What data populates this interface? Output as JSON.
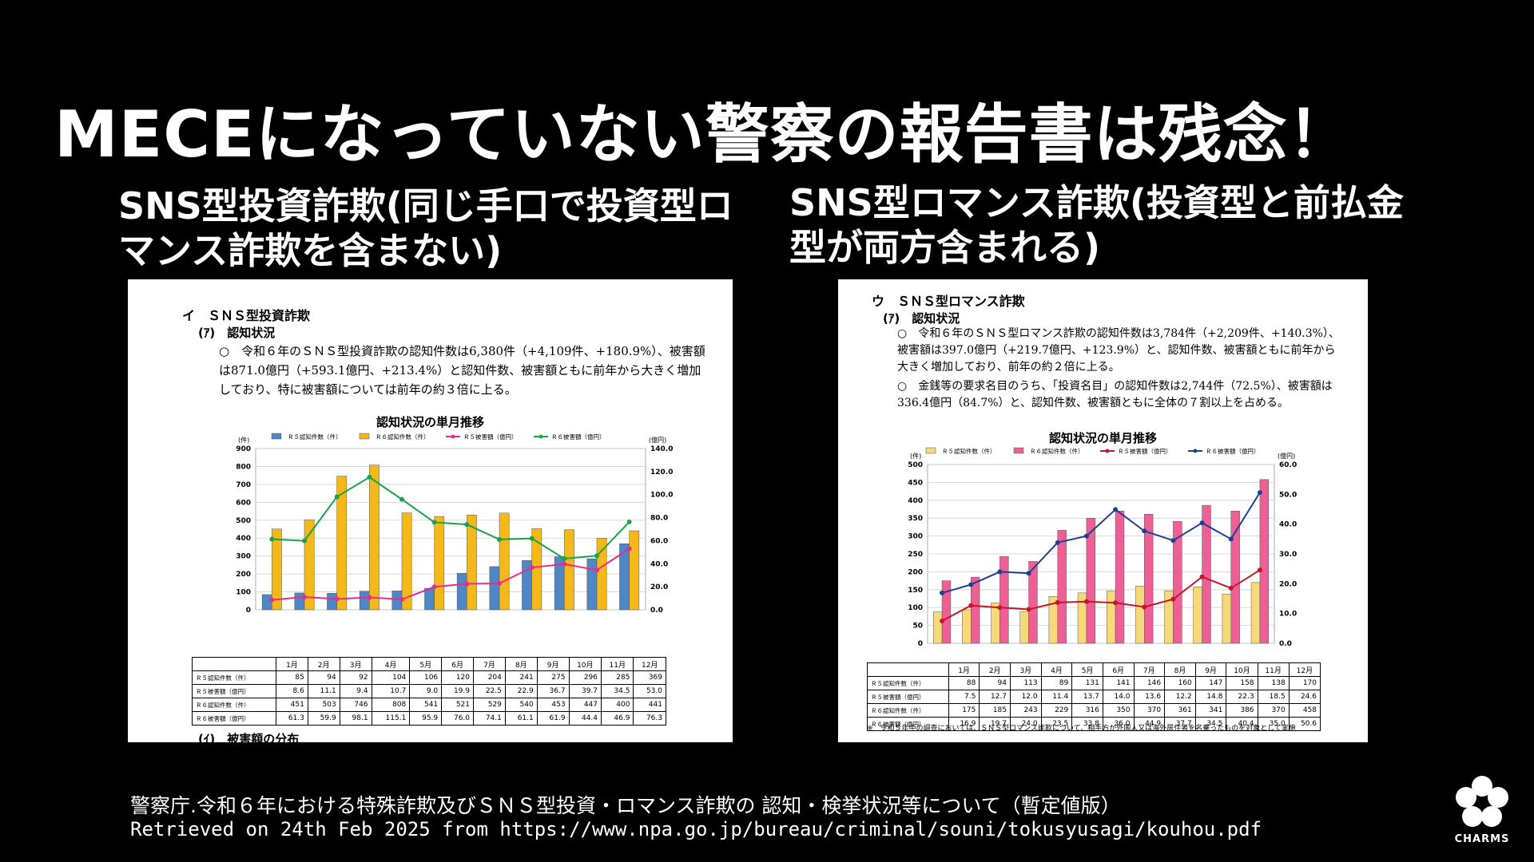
{
  "slide": {
    "title": "MECEになっていない警察の報告書は残念！",
    "left_heading": "SNS型投資詐欺(同じ手口で投資型ロマンス詐欺を含まない)",
    "right_heading": "SNS型ロマンス詐欺(投資型と前払金型が両方含まれる)",
    "source_line1": "警察庁.令和６年における特殊詐欺及びＳＮＳ型投資・ロマンス詐欺の 認知・検挙状況等について（暫定値版）",
    "source_line2": "Retrieved on 24th Feb 2025 from https://www.npa.go.jp/bureau/criminal/souni/tokusyusagi/kouhou.pdf",
    "logo_text": "CHARMS"
  },
  "left_panel": {
    "section": "イ　ＳＮＳ型投資詐欺",
    "subsection": "(ｱ)　認知状況",
    "paragraph": "○　令和６年のＳＮＳ型投資詐欺の認知件数は6,380件（+4,109件、+180.9%）、被害額は871.0億円（+593.1億円、+213.4%）と認知件数、被害額ともに前年から大きく増加しており、特に被害額については前年の約３倍に上る。",
    "footer_cut": "(ｲ)　被害額の分布"
  },
  "right_panel": {
    "section": "ウ　ＳＮＳ型ロマンス詐欺",
    "subsection": "(ｱ)　認知状況",
    "paragraph1": "○　令和６年のＳＮＳ型ロマンス詐欺の認知件数は3,784件（+2,209件、+140.3%）、被害額は397.0億円（+219.7億円、+123.9%）と、認知件数、被害額ともに前年から大きく増加しており、前年の約２倍に上る。",
    "paragraph2": "○　金銭等の要求名目のうち、「投資名目」の認知件数は2,744件（72.5%）、被害額は336.4億円（84.7%）と、認知件数、被害額ともに全体の７割以上を占める。",
    "note": "※　令和５年中の調査においては、ＳＮＳ型ロマンス詐欺について、相手方が外国人又は海外居住者を名乗ったものを対象として実施"
  },
  "chart_data": [
    {
      "type": "bar",
      "title": "認知状況の単月推移",
      "categories": [
        "1月",
        "2月",
        "3月",
        "4月",
        "5月",
        "6月",
        "7月",
        "8月",
        "9月",
        "10月",
        "11月",
        "12月"
      ],
      "left_axis_unit": "(件)",
      "right_axis_unit": "(億円)",
      "ylim": [
        0,
        900
      ],
      "y_ticks": [
        0,
        100,
        200,
        300,
        400,
        500,
        600,
        700,
        800,
        900
      ],
      "y2lim": [
        0,
        140
      ],
      "y2_ticks": [
        "0.0",
        "20.0",
        "40.0",
        "60.0",
        "80.0",
        "100.0",
        "120.0",
        "140.0"
      ],
      "series": [
        {
          "name": "Ｒ５認知件数（件）",
          "kind": "bar",
          "axis": "left",
          "color": "#4f86c6",
          "values": [
            85,
            94,
            92,
            104,
            106,
            120,
            204,
            241,
            275,
            296,
            285,
            369
          ],
          "labels": [
            "85",
            "94",
            "92",
            "104",
            "106",
            "120",
            "204",
            "241",
            "275",
            "296",
            "285",
            "369"
          ]
        },
        {
          "name": "Ｒ６認知件数（件）",
          "kind": "bar",
          "axis": "left",
          "color": "#f5b819",
          "values": [
            451,
            503,
            746,
            808,
            541,
            521,
            529,
            540,
            453,
            447,
            400,
            441
          ],
          "labels": [
            "451",
            "503",
            "746",
            "808",
            "541",
            "521",
            "529",
            "540",
            "453",
            "447",
            "400",
            "441"
          ]
        },
        {
          "name": "Ｒ５被害額（億円）",
          "kind": "line",
          "axis": "right",
          "color": "#e62d8c",
          "values": [
            8.6,
            11.1,
            9.4,
            10.7,
            9.0,
            19.9,
            22.5,
            22.9,
            36.7,
            39.7,
            34.5,
            53.0
          ],
          "labels": [
            "8.6",
            "11.1",
            "9.4",
            "10.7",
            "9.0",
            "19.9",
            "22.5",
            "22.9",
            "36.7",
            "39.7",
            "34.5",
            "53.0"
          ]
        },
        {
          "name": "Ｒ６被害額（億円）",
          "kind": "line",
          "axis": "right",
          "color": "#1aa34a",
          "values": [
            61.3,
            59.9,
            98.1,
            115.1,
            95.9,
            76.0,
            74.1,
            61.1,
            61.9,
            44.4,
            46.9,
            76.3
          ],
          "labels": [
            "61.3",
            "59.9",
            "98.1",
            "115.1",
            "95.9",
            "76.0",
            "74.1",
            "61.1",
            "61.9",
            "44.4",
            "46.9",
            "76.3"
          ]
        }
      ]
    },
    {
      "type": "bar",
      "title": "認知状況の単月推移",
      "categories": [
        "1月",
        "2月",
        "3月",
        "4月",
        "5月",
        "6月",
        "7月",
        "8月",
        "9月",
        "10月",
        "11月",
        "12月"
      ],
      "left_axis_unit": "(件)",
      "right_axis_unit": "(億円)",
      "ylim": [
        0,
        500
      ],
      "y_ticks": [
        0,
        50,
        100,
        150,
        200,
        250,
        300,
        350,
        400,
        450,
        500
      ],
      "y2lim": [
        0,
        60
      ],
      "y2_ticks": [
        "0.0",
        "10.0",
        "20.0",
        "30.0",
        "40.0",
        "50.0",
        "60.0"
      ],
      "series": [
        {
          "name": "Ｒ５認知件数（件）",
          "kind": "bar",
          "axis": "left",
          "color": "#f7d97a",
          "values": [
            88,
            94,
            113,
            89,
            131,
            141,
            146,
            160,
            147,
            158,
            138,
            170
          ],
          "labels": [
            "88",
            "94",
            "113",
            "89",
            "131",
            "141",
            "146",
            "160",
            "147",
            "158",
            "138",
            "170"
          ]
        },
        {
          "name": "Ｒ６認知件数（件）",
          "kind": "bar",
          "axis": "left",
          "color": "#ee5f95",
          "values": [
            175,
            185,
            243,
            229,
            316,
            350,
            370,
            361,
            341,
            386,
            370,
            458
          ],
          "labels": [
            "175",
            "185",
            "243",
            "229",
            "316",
            "350",
            "370",
            "361",
            "341",
            "386",
            "370",
            "458"
          ]
        },
        {
          "name": "Ｒ５被害額（億円）",
          "kind": "line",
          "axis": "right",
          "color": "#c0172b",
          "values": [
            7.5,
            12.7,
            12.0,
            11.4,
            13.7,
            14.0,
            13.6,
            12.2,
            14.8,
            22.3,
            18.5,
            24.6
          ],
          "labels": [
            "7.5",
            "12.7",
            "12.0",
            "11.4",
            "13.7",
            "14.0",
            "13.6",
            "12.2",
            "14.8",
            "22.3",
            "18.5",
            "24.6"
          ]
        },
        {
          "name": "Ｒ６被害額（億円）",
          "kind": "line",
          "axis": "right",
          "color": "#1f3f8f",
          "values": [
            16.9,
            19.7,
            24.0,
            23.5,
            33.8,
            36.0,
            44.9,
            37.7,
            34.5,
            40.4,
            35.0,
            50.6
          ],
          "labels": [
            "16.9",
            "19.7",
            "24.0",
            "23.5",
            "33.8",
            "36.0",
            "44.9",
            "37.7",
            "34.5",
            "40.4",
            "35.0",
            "50.6"
          ]
        }
      ]
    }
  ]
}
